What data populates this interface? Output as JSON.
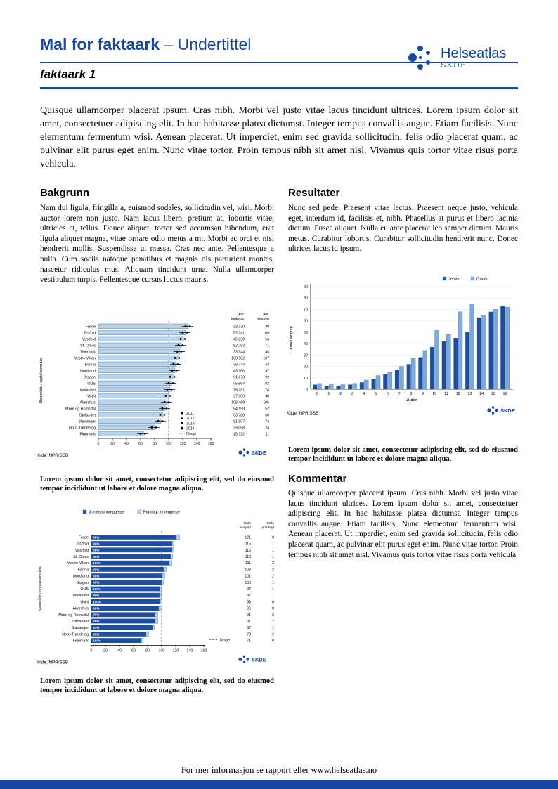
{
  "header": {
    "title_bold": "Mal for faktaark",
    "title_rest": " – Undertittel",
    "subtitle": "faktaark 1",
    "logo": {
      "name": "Helseatlas",
      "sub": "SKDE"
    }
  },
  "intro": "Quisque ullamcorper placerat ipsum. Cras nibh. Morbi vel justo vitae lacus tincidunt ultrices. Lorem ipsum dolor sit amet, consectetuer adipiscing elit. In hac habitasse platea dictumst. Integer tempus convallis augue. Etiam facilisis. Nunc elementum fermentum wisi. Aenean placerat. Ut imperdiet, enim sed gravida sollicitudin, felis odio placerat quam, ac pulvinar elit purus eget enim. Nunc vitae tortor. Proin tempus nibh sit amet nisl. Vivamus quis tortor vitae risus porta vehicula.",
  "sections": {
    "bakgrunn": {
      "heading": "Bakgrunn",
      "body": "Nam dui ligula, fringilla a, euismod sodales, sollicitudin vel, wisi. Morbi auctor lorem non justo. Nam lacus libero, pretium at, lobortis vitae, ultricies et, tellus. Donec aliquet, tortor sed accumsan bibendum, erat ligula aliquet magna, vitae ornare odio metus a mi. Morbi ac orci et nisl hendrerit mollis. Suspendisse ut massa. Cras nec ante. Pellentesque a nulla. Cum sociis natoque penatibus et magnis dis parturient montes, nascetur ridiculus mus. Aliquam tincidunt urna. Nulla ullamcorper vestibulum turpis. Pellentesque cursus luctus mauris."
    },
    "resultater": {
      "heading": "Resultater",
      "body": "Nunc sed pede. Praesent vitae lectus. Praesent neque justo, vehicula eget, interdum id, facilisis et, nibh. Phasellus at purus et libero lacinia dictum. Fusce aliquet. Nulla eu ante placerat leo semper dictum. Mauris metus. Curabitur lobortis. Curabitur sollicitudin hendrerit nunc. Donec ultrices lacus id ipsum."
    },
    "kommentar": {
      "heading": "Kommentar",
      "body": "Quisque ullamcorper placerat ipsum. Cras nibh. Morbi vel justo vitae lacus tincidunt ultrices. Lorem ipsum dolor sit amet, consectetuer adipiscing elit. In hac habitasse platea dictumst. Integer tempus convallis augue. Etiam facilisis. Nunc elementum fermentum wisi. Aenean placerat. Ut imperdiet, enim sed gravida sollicitudin, felis odio placerat quam, ac pulvinar elit purus eget enim. Nunc vitae tortor. Proin tempus nibh sit amet nisl. Vivamus quis tortor vitae risus porta vehicula."
    }
  },
  "captions": {
    "chart1": "Lorem ipsum dolor sit amet, consectetur adipiscing elit, sed do eiusmod tempor incididunt ut labore et dolore magna aliqua.",
    "chart2": "Lorem ipsum dolor sit amet, consectetur adipiscing elit, sed do eiusmod tempor incididunt ut labore et dolore magna aliqua.",
    "chart3": "Lorem ipsum dolor sit amet, consectetur adipiscing elit, sed do eiusmod tempor incididunt ut labore et dolore magna aliqua."
  },
  "footer": {
    "text": "For mer informasjon se rapport eller www.helseatlas.no"
  },
  "colors": {
    "brand": "#17479E",
    "bar_dark": "#1F4E9C",
    "bar_light": "#B8D3EA",
    "bar_gutter": "#7EA9DB",
    "bar_border": "#4A7AB5",
    "footer_bar": "#17479E"
  },
  "chart_data": [
    {
      "type": "bar",
      "orientation": "horizontal",
      "ylabel": "Boområde / opptaksområde",
      "xlim": [
        0,
        160
      ],
      "xticks": [
        0,
        20,
        40,
        60,
        80,
        100,
        120,
        140,
        160
      ],
      "reference_line": {
        "label": "Norge",
        "value": 100
      },
      "legend": [
        "2011",
        "2012",
        "2013",
        "2014",
        "Norge"
      ],
      "col_headers": [
        "Ant. innbygg.",
        "Ant. inngrep"
      ],
      "source": "Kilde: NPR/SSB",
      "rows": [
        {
          "label": "Førde",
          "rate": 128,
          "innbygg": "23 330",
          "inngrep": 30
        },
        {
          "label": "Østfold",
          "rate": 124,
          "innbygg": "57 341",
          "inngrep": 69
        },
        {
          "label": "Vestfold",
          "rate": 121,
          "innbygg": "45 330",
          "inngrep": 54
        },
        {
          "label": "St. Olavs",
          "rate": 118,
          "innbygg": "62 253",
          "inngrep": 71
        },
        {
          "label": "Telemark",
          "rate": 116,
          "innbygg": "33 344",
          "inngrep": 40
        },
        {
          "label": "Vestre Viken",
          "rate": 113,
          "innbygg": "100 582",
          "inngrep": 107
        },
        {
          "label": "Fonna",
          "rate": 111,
          "innbygg": "39 744",
          "inngrep": 43
        },
        {
          "label": "Nordland",
          "rate": 109,
          "innbygg": "43 186",
          "inngrep": 47
        },
        {
          "label": "Bergen",
          "rate": 106,
          "innbygg": "91 673",
          "inngrep": 92
        },
        {
          "label": "OUS",
          "rate": 104,
          "innbygg": "95 564",
          "inngrep": 82
        },
        {
          "label": "Innlandet",
          "rate": 102,
          "innbygg": "75 231",
          "inngrep": 78
        },
        {
          "label": "UNN",
          "rate": 100,
          "innbygg": "37 609",
          "inngrep": 38
        },
        {
          "label": "Akershus",
          "rate": 98,
          "innbygg": "108 469",
          "inngrep": 105
        },
        {
          "label": "Møre og Romsdal",
          "rate": 95,
          "innbygg": "54 199",
          "inngrep": 52
        },
        {
          "label": "Sørlandet",
          "rate": 92,
          "innbygg": "63 788",
          "inngrep": 60
        },
        {
          "label": "Stavanger",
          "rate": 89,
          "innbygg": "81 507",
          "inngrep": 74
        },
        {
          "label": "Nord-Trøndelag",
          "rate": 80,
          "innbygg": "29 058",
          "inngrep": 24
        },
        {
          "label": "Finnmark",
          "rate": 64,
          "innbygg": "15 332",
          "inngrep": 11
        }
      ]
    },
    {
      "type": "bar",
      "xlabel": "Alder",
      "ylabel": "Antall inngrep",
      "ylim": [
        0,
        90
      ],
      "yticks": [
        0,
        10,
        20,
        30,
        40,
        50,
        60,
        70,
        80,
        90
      ],
      "categories": [
        "0",
        "1",
        "2",
        "3",
        "4",
        "5",
        "6",
        "7",
        "8",
        "9",
        "10",
        "11",
        "12",
        "13",
        "14",
        "15",
        "16"
      ],
      "series": [
        {
          "name": "Jenter",
          "color": "#1F4E9C",
          "values": [
            4,
            3,
            3,
            4,
            6,
            9,
            13,
            17,
            22,
            28,
            37,
            42,
            45,
            50,
            63,
            68,
            73
          ]
        },
        {
          "name": "Gutter",
          "color": "#7EA9DB",
          "values": [
            5,
            4,
            4,
            5,
            8,
            12,
            15,
            20,
            27,
            34,
            52,
            48,
            68,
            75,
            65,
            70,
            72
          ]
        }
      ],
      "source": "Kilde: NPR/SSB"
    },
    {
      "type": "bar",
      "orientation": "horizontal",
      "stacked": true,
      "legend": [
        "Ø-hjelpsinnleggelse",
        "Planlagt innleggelse"
      ],
      "ylabel": "Boområde / opptaksområde",
      "xlim": [
        0,
        160
      ],
      "xticks": [
        0,
        20,
        40,
        60,
        80,
        100,
        120,
        140,
        160
      ],
      "reference_line": {
        "label": "Norge",
        "value": 100
      },
      "col_headers": [
        "Rate ø-hjelp",
        "Rate planlagt"
      ],
      "source": "Kilde: NPR/SSB",
      "rows": [
        {
          "label": "Førde",
          "pct": "98%",
          "rate_ohjelp": 121,
          "rate_planlagt": 3
        },
        {
          "label": "Østfold",
          "pct": "99%",
          "rate_ohjelp": 115,
          "rate_planlagt": 1
        },
        {
          "label": "Vestfold",
          "pct": "99%",
          "rate_ohjelp": 115,
          "rate_planlagt": 1
        },
        {
          "label": "St. Olavs",
          "pct": "99%",
          "rate_ohjelp": 113,
          "rate_planlagt": 1
        },
        {
          "label": "Vestre Viken",
          "pct": "100%",
          "rate_ohjelp": 111,
          "rate_planlagt": 2
        },
        {
          "label": "Fonna",
          "pct": "99%",
          "rate_ohjelp": 103,
          "rate_planlagt": 2
        },
        {
          "label": "Nordland",
          "pct": "99%",
          "rate_ohjelp": 101,
          "rate_planlagt": 2
        },
        {
          "label": "Bergen",
          "pct": "98%",
          "rate_ohjelp": 100,
          "rate_planlagt": 1
        },
        {
          "label": "OUS",
          "pct": "100%",
          "rate_ohjelp": 97,
          "rate_planlagt": 1
        },
        {
          "label": "Innlandet",
          "pct": "99%",
          "rate_ohjelp": 97,
          "rate_planlagt": 1
        },
        {
          "label": "UNN",
          "pct": "100%",
          "rate_ohjelp": 98,
          "rate_planlagt": 0
        },
        {
          "label": "Akershus",
          "pct": "98%",
          "rate_ohjelp": 96,
          "rate_planlagt": 0
        },
        {
          "label": "Møre og Romsdal",
          "pct": "98%",
          "rate_ohjelp": 91,
          "rate_planlagt": 2
        },
        {
          "label": "Sørlandet",
          "pct": "98%",
          "rate_ohjelp": 91,
          "rate_planlagt": 2
        },
        {
          "label": "Stavanger",
          "pct": "97%",
          "rate_ohjelp": 87,
          "rate_planlagt": 1
        },
        {
          "label": "Nord-Trøndelag",
          "pct": "98%",
          "rate_ohjelp": 78,
          "rate_planlagt": 2
        },
        {
          "label": "Finnmark",
          "pct": "100%",
          "rate_ohjelp": 71,
          "rate_planlagt": 0
        }
      ]
    }
  ]
}
